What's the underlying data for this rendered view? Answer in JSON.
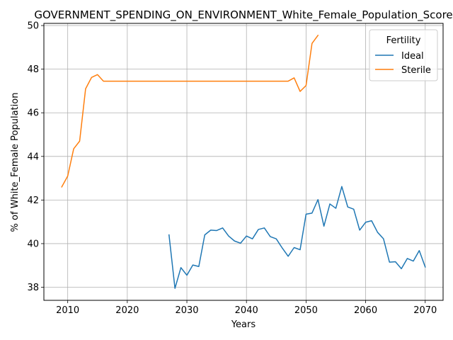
{
  "chart_data": {
    "type": "line",
    "title": "GOVERNMENT_SPENDING_ON_ENVIRONMENT_White_Female_Population_Score",
    "xlabel": "Years",
    "ylabel": "% of White_Female Population",
    "xlim": [
      2006,
      2073
    ],
    "ylim": [
      37.4,
      50.1
    ],
    "xticks": [
      2010,
      2020,
      2030,
      2040,
      2050,
      2060,
      2070
    ],
    "yticks": [
      38,
      40,
      42,
      44,
      46,
      48,
      50
    ],
    "grid": true,
    "legend": {
      "title": "Fertility",
      "placement": "top-right"
    },
    "series": [
      {
        "name": "Ideal",
        "color": "#1f77b4",
        "x": [
          2027,
          2028,
          2029,
          2030,
          2031,
          2032,
          2033,
          2034,
          2035,
          2036,
          2037,
          2038,
          2039,
          2040,
          2041,
          2042,
          2043,
          2044,
          2045,
          2046,
          2047,
          2048,
          2049,
          2050,
          2051,
          2052,
          2053,
          2054,
          2055,
          2056,
          2057,
          2058,
          2059,
          2060,
          2061,
          2062,
          2063,
          2064,
          2065,
          2066,
          2067,
          2068,
          2069,
          2070
        ],
        "y": [
          40.4,
          37.95,
          38.9,
          38.55,
          39.02,
          38.95,
          40.4,
          40.62,
          40.6,
          40.72,
          40.35,
          40.12,
          40.02,
          40.35,
          40.22,
          40.65,
          40.72,
          40.32,
          40.22,
          39.8,
          39.42,
          39.82,
          39.72,
          41.35,
          41.4,
          42.02,
          40.8,
          41.82,
          41.62,
          42.62,
          41.68,
          41.58,
          40.62,
          40.98,
          41.05,
          40.52,
          40.22,
          39.15,
          39.17,
          38.85,
          39.32,
          39.2,
          39.68,
          38.93
        ]
      },
      {
        "name": "Sterile",
        "color": "#ff7f0e",
        "x": [
          2009,
          2010,
          2011,
          2012,
          2013,
          2014,
          2015,
          2016,
          2017,
          2018,
          2019,
          2020,
          2021,
          2022,
          2023,
          2024,
          2025,
          2026,
          2027,
          2028,
          2029,
          2030,
          2031,
          2032,
          2033,
          2034,
          2035,
          2036,
          2037,
          2038,
          2039,
          2040,
          2041,
          2042,
          2043,
          2044,
          2045,
          2046,
          2047,
          2048,
          2049,
          2050,
          2051,
          2052
        ],
        "y": [
          42.6,
          43.1,
          44.35,
          44.7,
          47.1,
          47.62,
          47.75,
          47.45,
          47.45,
          47.45,
          47.45,
          47.45,
          47.45,
          47.45,
          47.45,
          47.45,
          47.45,
          47.45,
          47.45,
          47.45,
          47.45,
          47.45,
          47.45,
          47.45,
          47.45,
          47.45,
          47.45,
          47.45,
          47.45,
          47.45,
          47.45,
          47.45,
          47.45,
          47.45,
          47.45,
          47.45,
          47.45,
          47.45,
          47.45,
          47.6,
          46.98,
          47.25,
          49.18,
          49.55
        ]
      }
    ]
  }
}
